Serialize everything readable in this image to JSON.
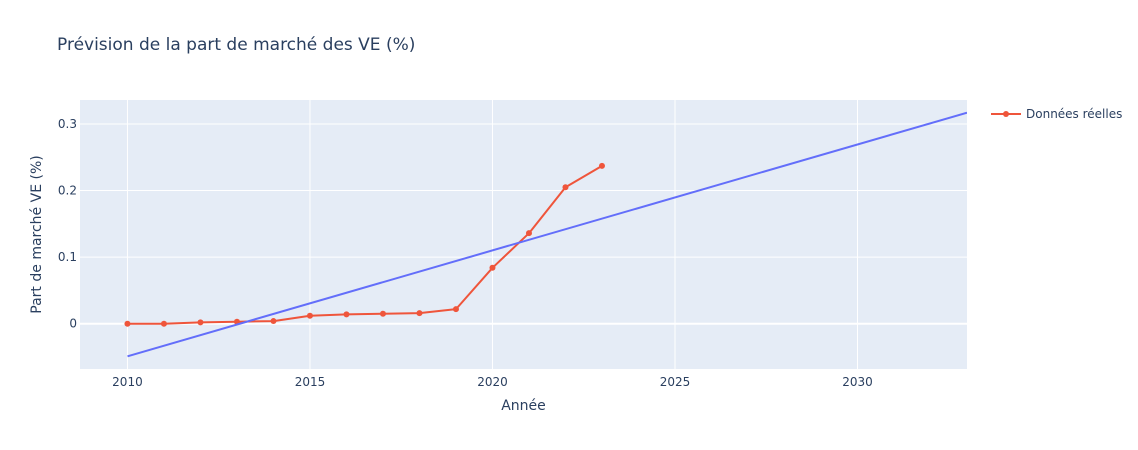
{
  "chart_data": {
    "type": "line",
    "title": "Prévision de la part de marché des VE (%)",
    "xlabel": "Année",
    "ylabel": "Part de marché VE (%)",
    "xlim": [
      2008.7,
      2033.0
    ],
    "ylim": [
      -0.068,
      0.336
    ],
    "x_ticks": [
      2010,
      2015,
      2020,
      2025,
      2030
    ],
    "y_ticks": [
      0,
      0.1,
      0.2,
      0.3
    ],
    "y_tick_labels": [
      "0",
      "0.1",
      "0.2",
      "0.3"
    ],
    "grid": true,
    "legend_position": "top-right",
    "colors": {
      "plot_bg": "#e5ecf6",
      "grid": "#ffffff",
      "actual": "#ef553b",
      "trend": "#636efa"
    },
    "series": [
      {
        "name": "Données réelles",
        "mode": "lines+markers",
        "x": [
          2010,
          2011,
          2012,
          2013,
          2014,
          2015,
          2016,
          2017,
          2018,
          2019,
          2020,
          2021,
          2022,
          2023
        ],
        "values": [
          0.0,
          0.0,
          0.002,
          0.003,
          0.004,
          0.012,
          0.014,
          0.015,
          0.016,
          0.022,
          0.084,
          0.136,
          0.205,
          0.237
        ]
      },
      {
        "mode": "lines",
        "x": [
          2010,
          2033
        ],
        "values": [
          -0.049,
          0.317
        ]
      }
    ]
  }
}
